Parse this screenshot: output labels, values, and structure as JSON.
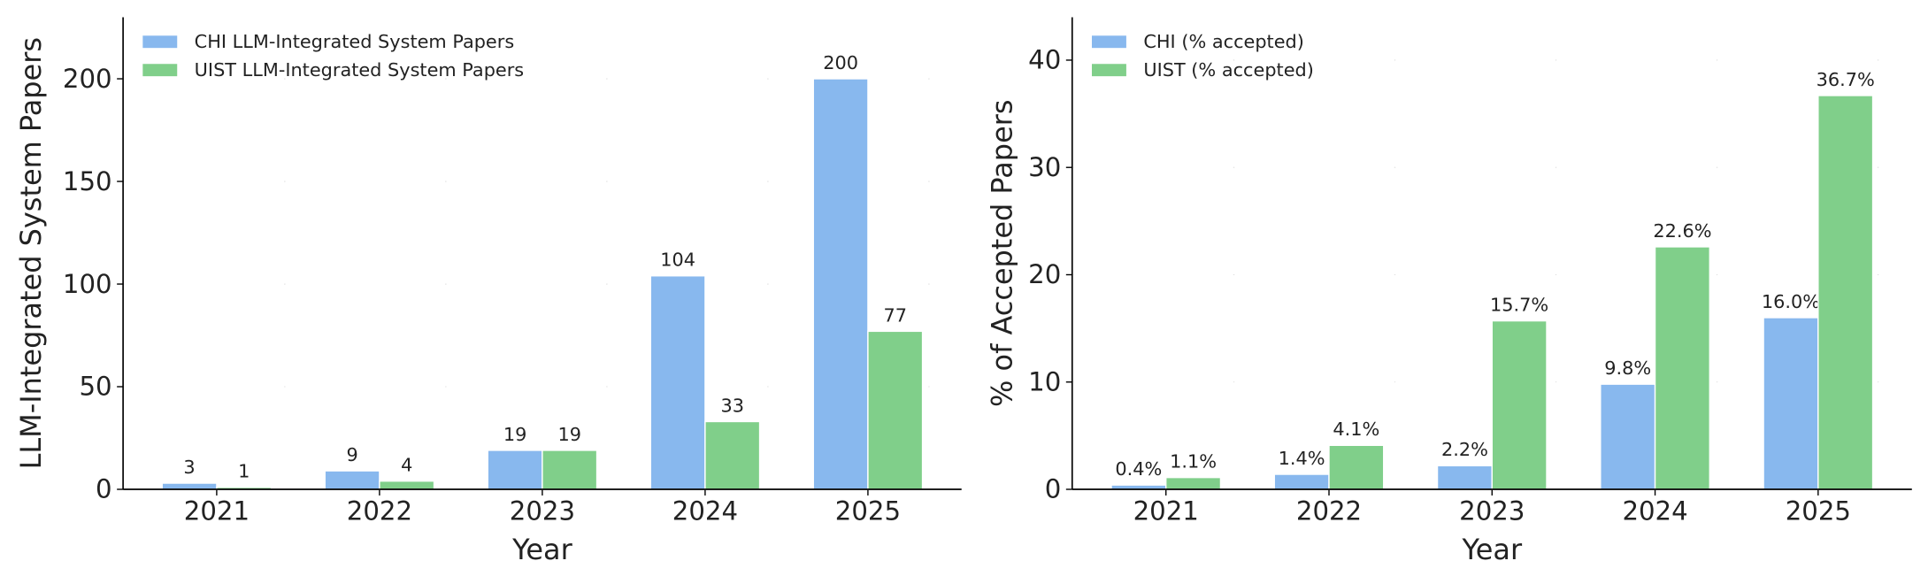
{
  "chart_data": [
    {
      "type": "bar",
      "xlabel": "Year",
      "ylabel": "LLM-Integrated System Papers",
      "categories": [
        "2021",
        "2022",
        "2023",
        "2024",
        "2025"
      ],
      "series": [
        {
          "name": "CHI LLM-Integrated System Papers",
          "color": "#88b8ee",
          "values": [
            3,
            9,
            19,
            104,
            200
          ]
        },
        {
          "name": "UIST LLM-Integrated System Papers",
          "color": "#80cf8a",
          "values": [
            1,
            4,
            19,
            33,
            77
          ]
        }
      ],
      "ylim": [
        0,
        230
      ],
      "yticks": [
        0,
        50,
        100,
        150,
        200
      ],
      "grid": true,
      "legend": "upper left"
    },
    {
      "type": "bar",
      "xlabel": "Year",
      "ylabel": "% of Accepted Papers",
      "categories": [
        "2021",
        "2022",
        "2023",
        "2024",
        "2025"
      ],
      "series": [
        {
          "name": "CHI (% accepted)",
          "color": "#88b8ee",
          "values": [
            0.4,
            1.4,
            2.2,
            9.8,
            16.0
          ],
          "value_labels": [
            "0.4%",
            "1.4%",
            "2.2%",
            "9.8%",
            "16.0%"
          ]
        },
        {
          "name": "UIST (% accepted)",
          "color": "#80cf8a",
          "values": [
            1.1,
            4.1,
            15.7,
            22.6,
            36.7
          ],
          "value_labels": [
            "1.1%",
            "4.1%",
            "15.7%",
            "22.6%",
            "36.7%"
          ]
        }
      ],
      "ylim": [
        0,
        44
      ],
      "yticks": [
        0,
        10,
        20,
        30,
        40
      ],
      "grid": true,
      "legend": "upper left"
    }
  ]
}
